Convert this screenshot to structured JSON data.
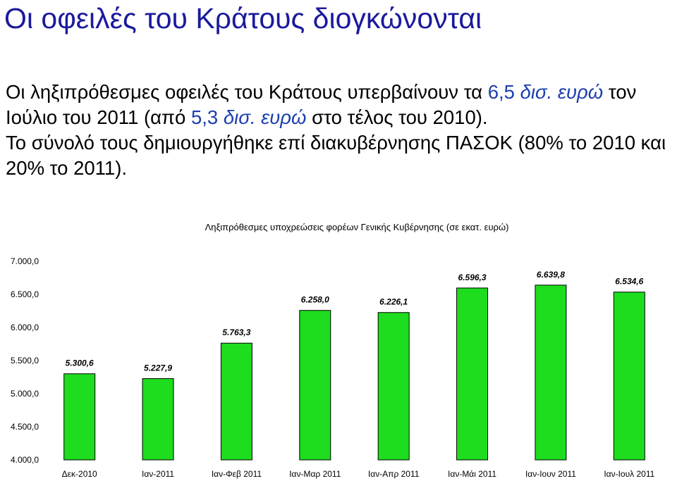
{
  "slide": {
    "title": "Οι οφειλές του Κράτους διογκώνονται",
    "p1_a": "Οι ληξιπρόθεσμες οφειλές του Κράτους υπερβαίνουν τα ",
    "p1_b": "6,5",
    "p1_c": " δισ. ευρώ",
    "p1_d": " τον",
    "p2_a": "Ιούλιο του 2011 (από ",
    "p2_b": "5,3",
    "p2_c": " δισ. ευρώ",
    "p2_d": " στο τέλος του 2010).",
    "p3": "Το σύνολό τους δημιουργήθηκε επί διακυβέρνησης ΠΑΣΟΚ (80% το 2010 και",
    "p4": "20% το 2011)."
  },
  "colors": {
    "title": "#1a1a9c",
    "highlight": "#1c3fae",
    "bar": "#1edc1e",
    "bar_stroke": "#000000"
  },
  "chart_data": {
    "type": "bar",
    "title": "Ληξιπρόθεσμες υποχρεώσεις φορέων Γενικής Κυβέρνησης (σε εκατ. ευρώ)",
    "xlabel": "",
    "ylabel": "",
    "categories": [
      "Δεκ-2010",
      "Ιαν-2011",
      "Ιαν-Φεβ 2011",
      "Ιαν-Μαρ 2011",
      "Ιαν-Απρ 2011",
      "Ιαν-Μάι 2011",
      "Ιαν-Ιουν 2011",
      "Ιαν-Ιουλ 2011"
    ],
    "values": [
      5300.6,
      5227.9,
      5763.3,
      6258.0,
      6226.1,
      6596.3,
      6639.8,
      6534.6
    ],
    "value_labels": [
      "5.300,6",
      "5.227,9",
      "5.763,3",
      "6.258,0",
      "6.226,1",
      "6.596,3",
      "6.639,8",
      "6.534,6"
    ],
    "ylim": [
      4000,
      7000
    ],
    "yticks": [
      4000,
      4500,
      5000,
      5500,
      6000,
      6500,
      7000
    ],
    "ytick_labels": [
      "4.000,0",
      "4.500,0",
      "5.000,0",
      "5.500,0",
      "6.000,0",
      "6.500,0",
      "7.000,0"
    ],
    "grid": false,
    "legend": "none"
  }
}
